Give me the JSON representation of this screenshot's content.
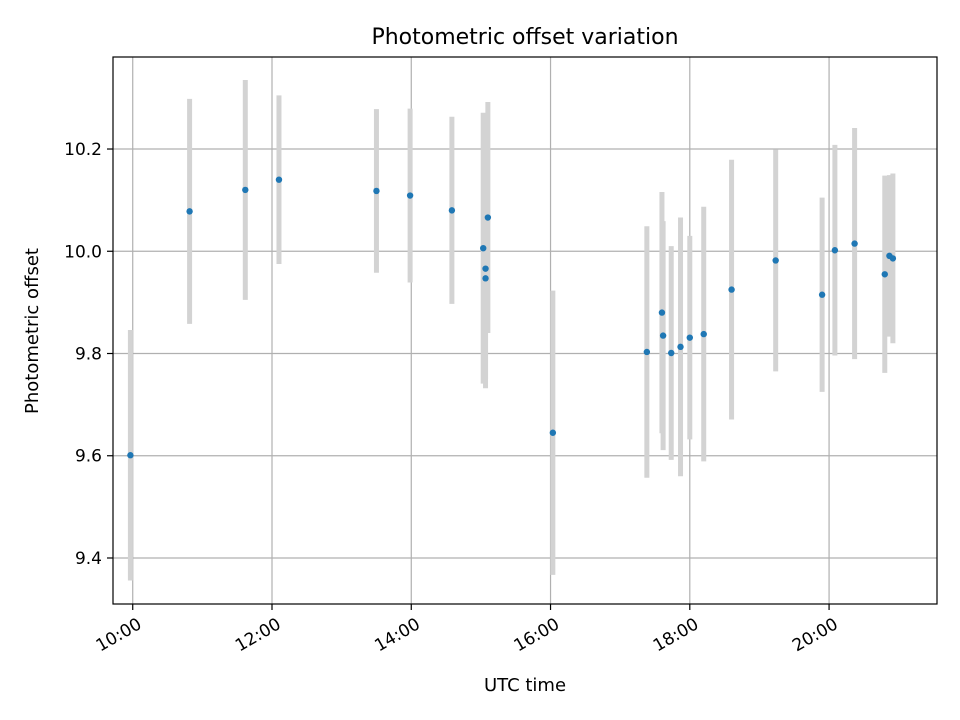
{
  "chart_data": {
    "type": "scatter",
    "title": "Photometric offset variation",
    "xlabel": "UTC time",
    "ylabel": "Photometric offset",
    "x_axis": {
      "type": "time",
      "lim": [
        "09:43",
        "21:33"
      ],
      "ticks": [
        "10:00",
        "12:00",
        "14:00",
        "16:00",
        "18:00",
        "20:00"
      ]
    },
    "y_axis": {
      "lim": [
        9.31,
        10.38
      ],
      "ticks": [
        9.4,
        9.6,
        9.8,
        10.0,
        10.2
      ],
      "tick_labels": [
        "9.4",
        "9.6",
        "9.8",
        "10.0",
        "10.2"
      ]
    },
    "grid": true,
    "colors": {
      "point": "#1f77b4",
      "errorbar": "#d3d3d3"
    },
    "points": [
      {
        "x": "09:58",
        "y": 9.601,
        "err": 0.245
      },
      {
        "x": "10:49",
        "y": 10.078,
        "err": 0.22
      },
      {
        "x": "11:37",
        "y": 10.12,
        "err": 0.215
      },
      {
        "x": "12:06",
        "y": 10.14,
        "err": 0.165
      },
      {
        "x": "13:30",
        "y": 10.118,
        "err": 0.16
      },
      {
        "x": "13:59",
        "y": 10.109,
        "err": 0.17
      },
      {
        "x": "14:35",
        "y": 10.08,
        "err": 0.183
      },
      {
        "x": "15:02",
        "y": 10.006,
        "err": 0.265
      },
      {
        "x": "15:04",
        "y": 9.966,
        "err": 0.216
      },
      {
        "x": "15:04",
        "y": 9.947,
        "err": 0.215
      },
      {
        "x": "15:06",
        "y": 10.066,
        "err": 0.226
      },
      {
        "x": "16:02",
        "y": 9.645,
        "err": 0.278
      },
      {
        "x": "17:23",
        "y": 9.803,
        "err": 0.246
      },
      {
        "x": "17:36",
        "y": 9.88,
        "err": 0.236
      },
      {
        "x": "17:37",
        "y": 9.835,
        "err": 0.224
      },
      {
        "x": "17:44",
        "y": 9.801,
        "err": 0.209
      },
      {
        "x": "17:52",
        "y": 9.813,
        "err": 0.253
      },
      {
        "x": "18:00",
        "y": 9.831,
        "err": 0.199
      },
      {
        "x": "18:12",
        "y": 9.838,
        "err": 0.249
      },
      {
        "x": "18:36",
        "y": 9.925,
        "err": 0.254
      },
      {
        "x": "19:14",
        "y": 9.982,
        "err": 0.217
      },
      {
        "x": "19:54",
        "y": 9.915,
        "err": 0.19
      },
      {
        "x": "20:05",
        "y": 10.002,
        "err": 0.206
      },
      {
        "x": "20:22",
        "y": 10.015,
        "err": 0.226
      },
      {
        "x": "20:48",
        "y": 9.955,
        "err": 0.193
      },
      {
        "x": "20:52",
        "y": 9.991,
        "err": 0.158
      },
      {
        "x": "20:55",
        "y": 9.986,
        "err": 0.166
      }
    ]
  }
}
